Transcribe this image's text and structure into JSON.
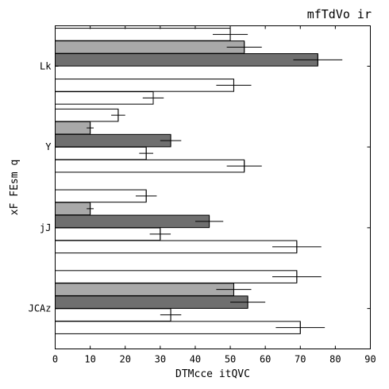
{
  "chart_data": {
    "type": "bar",
    "orientation": "horizontal",
    "title": "mfTdVo ir",
    "xlabel": "DTMcce itQVC",
    "ylabel": "xF FEsm q",
    "xlim": [
      0,
      90
    ],
    "xticks": [
      0,
      10,
      20,
      30,
      40,
      50,
      60,
      70,
      80,
      90
    ],
    "grid": false,
    "legend": "none",
    "categories": [
      "Lk",
      "Y",
      "jJ",
      "JCAz"
    ],
    "series": [
      {
        "color": "#ffffff",
        "values": [
          50,
          18,
          26,
          69
        ],
        "errors": [
          5,
          2,
          3,
          7
        ]
      },
      {
        "color": "#a9a9a9",
        "values": [
          54,
          10,
          10,
          51
        ],
        "errors": [
          5,
          1,
          1,
          5
        ]
      },
      {
        "color": "#6f6f6f",
        "values": [
          75,
          33,
          44,
          55
        ],
        "errors": [
          7,
          3,
          4,
          5
        ]
      },
      {
        "color": "#ffffff",
        "values": [
          null,
          26,
          30,
          33
        ],
        "errors": [
          null,
          2,
          3,
          3
        ]
      },
      {
        "color": "#ffffff",
        "values": [
          51,
          54,
          69,
          70
        ],
        "errors": [
          5,
          5,
          7,
          7
        ]
      },
      {
        "color": "#ffffff",
        "values": [
          28,
          null,
          null,
          null
        ],
        "errors": [
          3,
          null,
          null,
          null
        ]
      }
    ]
  }
}
